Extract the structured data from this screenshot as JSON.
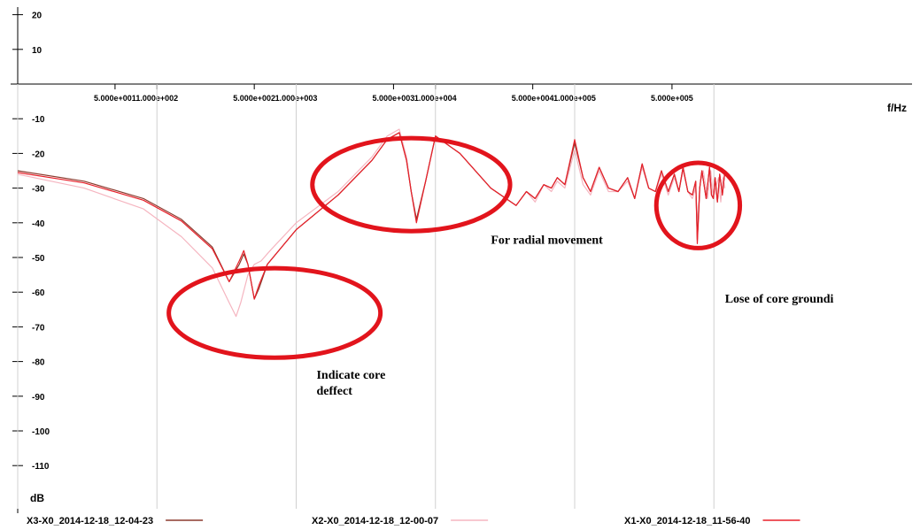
{
  "chart_data": {
    "type": "line",
    "xscale": "log",
    "xlabel": "f/Hz",
    "ylabel": "dB",
    "xlim": [
      10,
      2000000
    ],
    "ylim": [
      -120,
      20
    ],
    "y_ticks": [
      20,
      10,
      -10,
      -20,
      -30,
      -40,
      -50,
      -60,
      -70,
      -80,
      -90,
      -100,
      -110
    ],
    "x_ticks": [
      {
        "value": 50,
        "label": "5.000e+001"
      },
      {
        "value": 100,
        "label": "1.000e+002"
      },
      {
        "value": 500,
        "label": "5.000e+002"
      },
      {
        "value": 1000,
        "label": "1.000e+003"
      },
      {
        "value": 5000,
        "label": "5.000e+003"
      },
      {
        "value": 10000,
        "label": "1.000e+004"
      },
      {
        "value": 50000,
        "label": "5.000e+004"
      },
      {
        "value": 100000,
        "label": "1.000e+005"
      },
      {
        "value": 500000,
        "label": "5.000e+005"
      }
    ],
    "annotations": [
      {
        "text": "Indicate core",
        "x": 1400,
        "y": -85
      },
      {
        "text": "deffect",
        "x": 1400,
        "y": -89.5
      },
      {
        "text": "For radial movement",
        "x": 25000,
        "y": -46
      },
      {
        "text": "Lose of core groundi",
        "x": 1200000,
        "y": -63
      }
    ],
    "highlight_circles": [
      {
        "x_center": 700,
        "y_center": -66,
        "rx_decades": 0.76,
        "ry_db": 12.9,
        "label_ref": "Indicate core deffect"
      },
      {
        "x_center": 6700,
        "y_center": -29,
        "rx_decades": 0.71,
        "ry_db": 13.4,
        "label_ref": "For radial movement"
      },
      {
        "x_center": 770000,
        "y_center": -35,
        "rx_decades": 0.3,
        "ry_db": 12.3,
        "label_ref": "Lose of core groundi"
      }
    ],
    "legend_position": "bottom",
    "series": [
      {
        "name": "X3-X0_2014-12-18_12-04-23",
        "color": "#8b3a2e",
        "x": [
          10,
          30,
          80,
          150,
          250,
          330,
          390,
          420,
          450,
          500,
          540,
          620,
          1000,
          2000,
          3500,
          4500,
          5500,
          6200,
          6700,
          7300,
          8500,
          10000,
          15000,
          25000,
          38000,
          45000,
          52000,
          60000,
          68000,
          75000,
          85000,
          100000,
          115000,
          130000,
          150000,
          175000,
          205000,
          240000,
          270000,
          305000,
          340000,
          380000,
          420000,
          470000,
          520000,
          560000,
          600000,
          650000,
          700000,
          740000,
          760000,
          790000,
          820000,
          880000,
          930000,
          960000,
          990000,
          1020000,
          1060000,
          1100000,
          1150000,
          1200000
        ],
        "y": [
          -25,
          -28,
          -33,
          -39,
          -47,
          -57,
          -52,
          -49,
          -52,
          -62,
          -59,
          -52,
          -42,
          -32,
          -22,
          -16,
          -14,
          -22,
          -31,
          -39,
          -28,
          -15,
          -20,
          -30,
          -35,
          -31,
          -33,
          -29,
          -30,
          -27,
          -29,
          -17,
          -27,
          -31,
          -24,
          -30,
          -31,
          -27,
          -33,
          -23,
          -30,
          -31,
          -25,
          -31,
          -26,
          -31,
          -24,
          -31,
          -32,
          -28,
          -45,
          -30,
          -25,
          -33,
          -24,
          -32,
          -33,
          -27,
          -34,
          -26,
          -32,
          -25
        ]
      },
      {
        "name": "X2-X0_2014-12-18_12-00-07",
        "color": "#f5b5c0",
        "x": [
          10,
          30,
          80,
          150,
          250,
          330,
          370,
          400,
          450,
          500,
          560,
          650,
          1000,
          2000,
          3500,
          4500,
          5500,
          6200,
          6700,
          7300,
          8500,
          10000,
          15000,
          25000,
          38000,
          45000,
          52000,
          60000,
          68000,
          75000,
          85000,
          100000,
          115000,
          130000,
          150000,
          175000,
          205000,
          240000,
          270000,
          305000,
          340000,
          380000,
          420000,
          470000,
          520000,
          560000,
          600000,
          650000,
          700000,
          740000,
          770000,
          800000,
          840000,
          900000,
          950000,
          990000,
          1030000,
          1080000,
          1120000,
          1160000,
          1200000
        ],
        "y": [
          -26,
          -30,
          -36,
          -44,
          -53,
          -63,
          -67,
          -63,
          -55,
          -52,
          -51,
          -48,
          -40,
          -31,
          -21,
          -15,
          -13,
          -21,
          -31,
          -39,
          -28,
          -15,
          -20,
          -30,
          -35,
          -31,
          -34,
          -29,
          -31,
          -28,
          -30,
          -19,
          -29,
          -32,
          -25,
          -31,
          -31,
          -28,
          -33,
          -24,
          -30,
          -31,
          -26,
          -32,
          -27,
          -31,
          -25,
          -31,
          -33,
          -30,
          -42,
          -28,
          -25,
          -33,
          -25,
          -33,
          -30,
          -27,
          -34,
          -27,
          -30
        ]
      },
      {
        "name": "X1-X0_2014-12-18_11-56-40",
        "color": "#e8202a",
        "x": [
          10,
          30,
          80,
          150,
          250,
          330,
          390,
          420,
          450,
          500,
          540,
          620,
          1000,
          2000,
          3500,
          4500,
          5500,
          6200,
          6700,
          7300,
          8500,
          10000,
          15000,
          25000,
          38000,
          45000,
          52000,
          60000,
          68000,
          75000,
          85000,
          100000,
          115000,
          130000,
          150000,
          175000,
          205000,
          240000,
          270000,
          305000,
          340000,
          380000,
          420000,
          470000,
          520000,
          560000,
          600000,
          650000,
          700000,
          740000,
          760000,
          790000,
          820000,
          880000,
          930000,
          960000,
          990000,
          1020000,
          1060000,
          1100000,
          1150000,
          1200000
        ],
        "y": [
          -25.5,
          -28.5,
          -33.5,
          -39.5,
          -47.5,
          -57,
          -51,
          -48,
          -52,
          -62,
          -58,
          -52,
          -42,
          -32,
          -22,
          -16,
          -14,
          -22,
          -31,
          -40,
          -28,
          -15,
          -20,
          -30,
          -35,
          -31,
          -33,
          -29,
          -30,
          -27,
          -29,
          -16,
          -27,
          -31,
          -24,
          -30,
          -31,
          -27,
          -33,
          -23,
          -30,
          -31,
          -25,
          -31,
          -26,
          -31,
          -24,
          -31,
          -32,
          -28,
          -46,
          -30,
          -25,
          -33,
          -24,
          -32,
          -33,
          -27,
          -34,
          -26,
          -32,
          -25
        ]
      }
    ]
  }
}
